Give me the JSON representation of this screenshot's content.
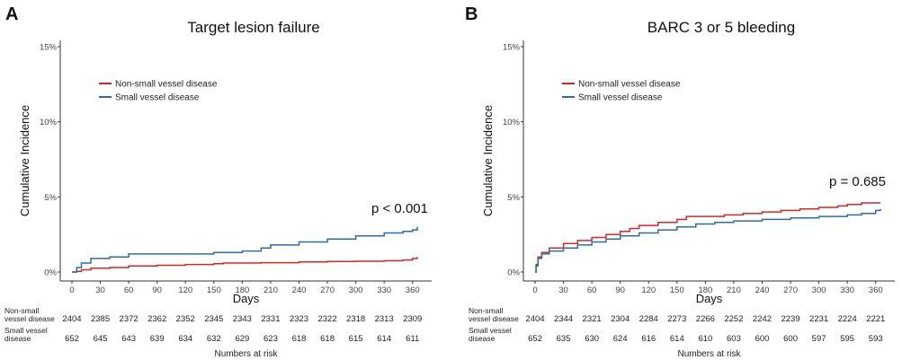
{
  "chart_data": [
    {
      "type": "line",
      "panel_label": "A",
      "title": "Target lesion failure",
      "xlabel": "Days",
      "ylabel": "Cumulative Incidence",
      "xlim": [
        0,
        365
      ],
      "ylim": [
        0,
        15
      ],
      "x_ticks": [
        0,
        30,
        60,
        90,
        120,
        150,
        180,
        210,
        240,
        270,
        300,
        330,
        360
      ],
      "y_ticks": [
        0,
        5,
        10,
        15
      ],
      "y_tick_labels": [
        "0%",
        "5%",
        "10%",
        "15%"
      ],
      "legend_position": "top-left",
      "annotation": "p < 0.001",
      "series": [
        {
          "name": "Non-small vessel disease",
          "color": "#d62728",
          "points": [
            [
              0,
              0
            ],
            [
              5,
              0.05
            ],
            [
              10,
              0.15
            ],
            [
              20,
              0.25
            ],
            [
              40,
              0.3
            ],
            [
              60,
              0.4
            ],
            [
              90,
              0.45
            ],
            [
              120,
              0.5
            ],
            [
              150,
              0.55
            ],
            [
              160,
              0.6
            ],
            [
              200,
              0.62
            ],
            [
              240,
              0.67
            ],
            [
              270,
              0.7
            ],
            [
              300,
              0.72
            ],
            [
              330,
              0.75
            ],
            [
              350,
              0.8
            ],
            [
              360,
              0.9
            ],
            [
              365,
              1.0
            ]
          ]
        },
        {
          "name": "Small vessel disease",
          "color": "#2e6e9e",
          "points": [
            [
              0,
              0
            ],
            [
              5,
              0.3
            ],
            [
              10,
              0.6
            ],
            [
              20,
              0.9
            ],
            [
              40,
              1.0
            ],
            [
              60,
              1.2
            ],
            [
              90,
              1.2
            ],
            [
              150,
              1.3
            ],
            [
              180,
              1.4
            ],
            [
              200,
              1.6
            ],
            [
              210,
              1.8
            ],
            [
              240,
              2.0
            ],
            [
              270,
              2.2
            ],
            [
              300,
              2.4
            ],
            [
              330,
              2.6
            ],
            [
              350,
              2.7
            ],
            [
              360,
              2.8
            ],
            [
              365,
              3.0
            ]
          ]
        }
      ],
      "risk_table": {
        "title": "Numbers at risk",
        "rows": [
          {
            "label_line1": "Non-small",
            "label_line2": "vessel disease",
            "values": [
              "2404",
              "2385",
              "2372",
              "2362",
              "2352",
              "2345",
              "2343",
              "2331",
              "2323",
              "2322",
              "2318",
              "2313",
              "2309"
            ]
          },
          {
            "label_line1": "Small vessel",
            "label_line2": "disease",
            "values": [
              "652",
              "645",
              "643",
              "639",
              "634",
              "632",
              "629",
              "623",
              "618",
              "618",
              "615",
              "614",
              "611"
            ]
          }
        ]
      }
    },
    {
      "type": "line",
      "panel_label": "B",
      "title": "BARC 3 or 5 bleeding",
      "xlabel": "Days",
      "ylabel": "Cumulative Incidence",
      "xlim": [
        0,
        365
      ],
      "ylim": [
        0,
        15
      ],
      "x_ticks": [
        0,
        30,
        60,
        90,
        120,
        150,
        180,
        210,
        240,
        270,
        300,
        330,
        360
      ],
      "y_ticks": [
        0,
        5,
        10,
        15
      ],
      "y_tick_labels": [
        "0%",
        "5%",
        "10%",
        "15%"
      ],
      "legend_position": "top-left",
      "annotation": "p = 0.685",
      "series": [
        {
          "name": "Non-small vessel disease",
          "color": "#d62728",
          "points": [
            [
              0,
              0
            ],
            [
              1,
              0.5
            ],
            [
              3,
              1.0
            ],
            [
              7,
              1.3
            ],
            [
              15,
              1.6
            ],
            [
              30,
              1.9
            ],
            [
              45,
              2.1
            ],
            [
              60,
              2.3
            ],
            [
              75,
              2.5
            ],
            [
              90,
              2.7
            ],
            [
              100,
              2.9
            ],
            [
              110,
              3.1
            ],
            [
              130,
              3.3
            ],
            [
              150,
              3.5
            ],
            [
              160,
              3.7
            ],
            [
              180,
              3.7
            ],
            [
              200,
              3.8
            ],
            [
              220,
              3.9
            ],
            [
              240,
              4.0
            ],
            [
              260,
              4.1
            ],
            [
              280,
              4.2
            ],
            [
              300,
              4.3
            ],
            [
              320,
              4.4
            ],
            [
              330,
              4.5
            ],
            [
              345,
              4.6
            ],
            [
              365,
              4.6
            ]
          ]
        },
        {
          "name": "Small vessel disease",
          "color": "#2e6e9e",
          "points": [
            [
              0,
              0
            ],
            [
              1,
              0.4
            ],
            [
              3,
              0.9
            ],
            [
              7,
              1.2
            ],
            [
              15,
              1.4
            ],
            [
              30,
              1.6
            ],
            [
              45,
              1.8
            ],
            [
              60,
              2.0
            ],
            [
              75,
              2.2
            ],
            [
              90,
              2.4
            ],
            [
              110,
              2.6
            ],
            [
              130,
              2.8
            ],
            [
              150,
              3.0
            ],
            [
              170,
              3.2
            ],
            [
              190,
              3.3
            ],
            [
              210,
              3.4
            ],
            [
              240,
              3.5
            ],
            [
              270,
              3.6
            ],
            [
              300,
              3.7
            ],
            [
              330,
              3.8
            ],
            [
              345,
              3.9
            ],
            [
              360,
              4.1
            ],
            [
              365,
              4.2
            ]
          ]
        }
      ],
      "risk_table": {
        "title": "Numbers at risk",
        "rows": [
          {
            "label_line1": "Non-small",
            "label_line2": "vessel disease",
            "values": [
              "2404",
              "2344",
              "2321",
              "2304",
              "2284",
              "2273",
              "2266",
              "2252",
              "2242",
              "2239",
              "2231",
              "2224",
              "2221"
            ]
          },
          {
            "label_line1": "Small vessel",
            "label_line2": "disease",
            "values": [
              "652",
              "635",
              "630",
              "624",
              "616",
              "614",
              "610",
              "603",
              "600",
              "600",
              "597",
              "595",
              "593"
            ]
          }
        ]
      }
    }
  ]
}
